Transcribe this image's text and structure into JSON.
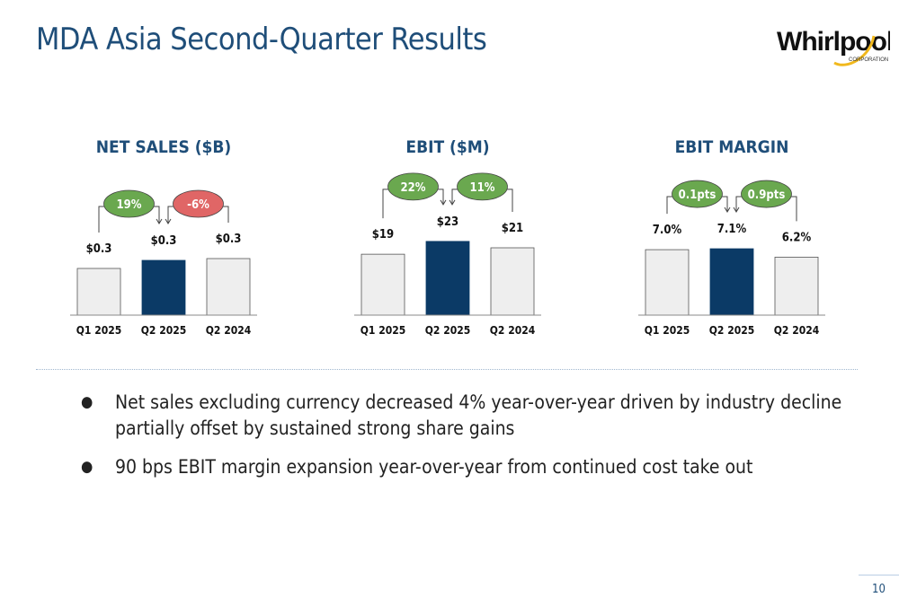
{
  "header": {
    "title": "MDA Asia Second-Quarter Results"
  },
  "logo": {
    "brand": "Whirlpool",
    "sub": "CORPORATION"
  },
  "colors": {
    "highlight": "#0b3a66",
    "neutral": "#eeeeee",
    "positive": "#6aa84f",
    "negative": "#e06666",
    "title": "#1f4e79"
  },
  "chart_data": [
    {
      "type": "bar",
      "title": "NET SALES ($B)",
      "categories": [
        "Q1 2025",
        "Q2 2025",
        "Q2 2024"
      ],
      "values": [
        0.3,
        0.3,
        0.3
      ],
      "labels": [
        "$0.3",
        "$0.3",
        "$0.3"
      ],
      "scale_values": [
        2.6,
        3.05,
        3.15
      ],
      "ylim": [
        0,
        5
      ],
      "highlight_index": 1,
      "changes": [
        {
          "label": "19%",
          "from": 0,
          "to": 1,
          "sentiment": "positive"
        },
        {
          "label": "-6%",
          "from": 2,
          "to": 1,
          "sentiment": "negative"
        }
      ]
    },
    {
      "type": "bar",
      "title": "EBIT ($M)",
      "categories": [
        "Q1 2025",
        "Q2 2025",
        "Q2 2024"
      ],
      "values": [
        19,
        23,
        21
      ],
      "labels": [
        "$19",
        "$23",
        "$21"
      ],
      "scale_values": [
        19,
        23,
        21
      ],
      "ylim": [
        0,
        28
      ],
      "highlight_index": 1,
      "changes": [
        {
          "label": "22%",
          "from": 0,
          "to": 1,
          "sentiment": "positive"
        },
        {
          "label": "11%",
          "from": 2,
          "to": 1,
          "sentiment": "positive"
        }
      ]
    },
    {
      "type": "bar",
      "title": "EBIT MARGIN",
      "categories": [
        "Q1 2025",
        "Q2 2025",
        "Q2 2024"
      ],
      "values": [
        7.0,
        7.1,
        6.2
      ],
      "labels": [
        "7.0%",
        "7.1%",
        "6.2%"
      ],
      "scale_values": [
        7.0,
        7.1,
        6.2
      ],
      "ylim": [
        0,
        9.6
      ],
      "highlight_index": 1,
      "changes": [
        {
          "label": "0.1pts",
          "from": 0,
          "to": 1,
          "sentiment": "positive"
        },
        {
          "label": "0.9pts",
          "from": 2,
          "to": 1,
          "sentiment": "positive"
        }
      ]
    }
  ],
  "bullets": [
    "Net sales excluding currency decreased 4% year-over-year driven by industry decline partially offset by sustained strong share gains",
    "90 bps EBIT margin expansion year-over-year from continued cost take out"
  ],
  "bullet_symbol": "●",
  "page": {
    "number": "10"
  }
}
